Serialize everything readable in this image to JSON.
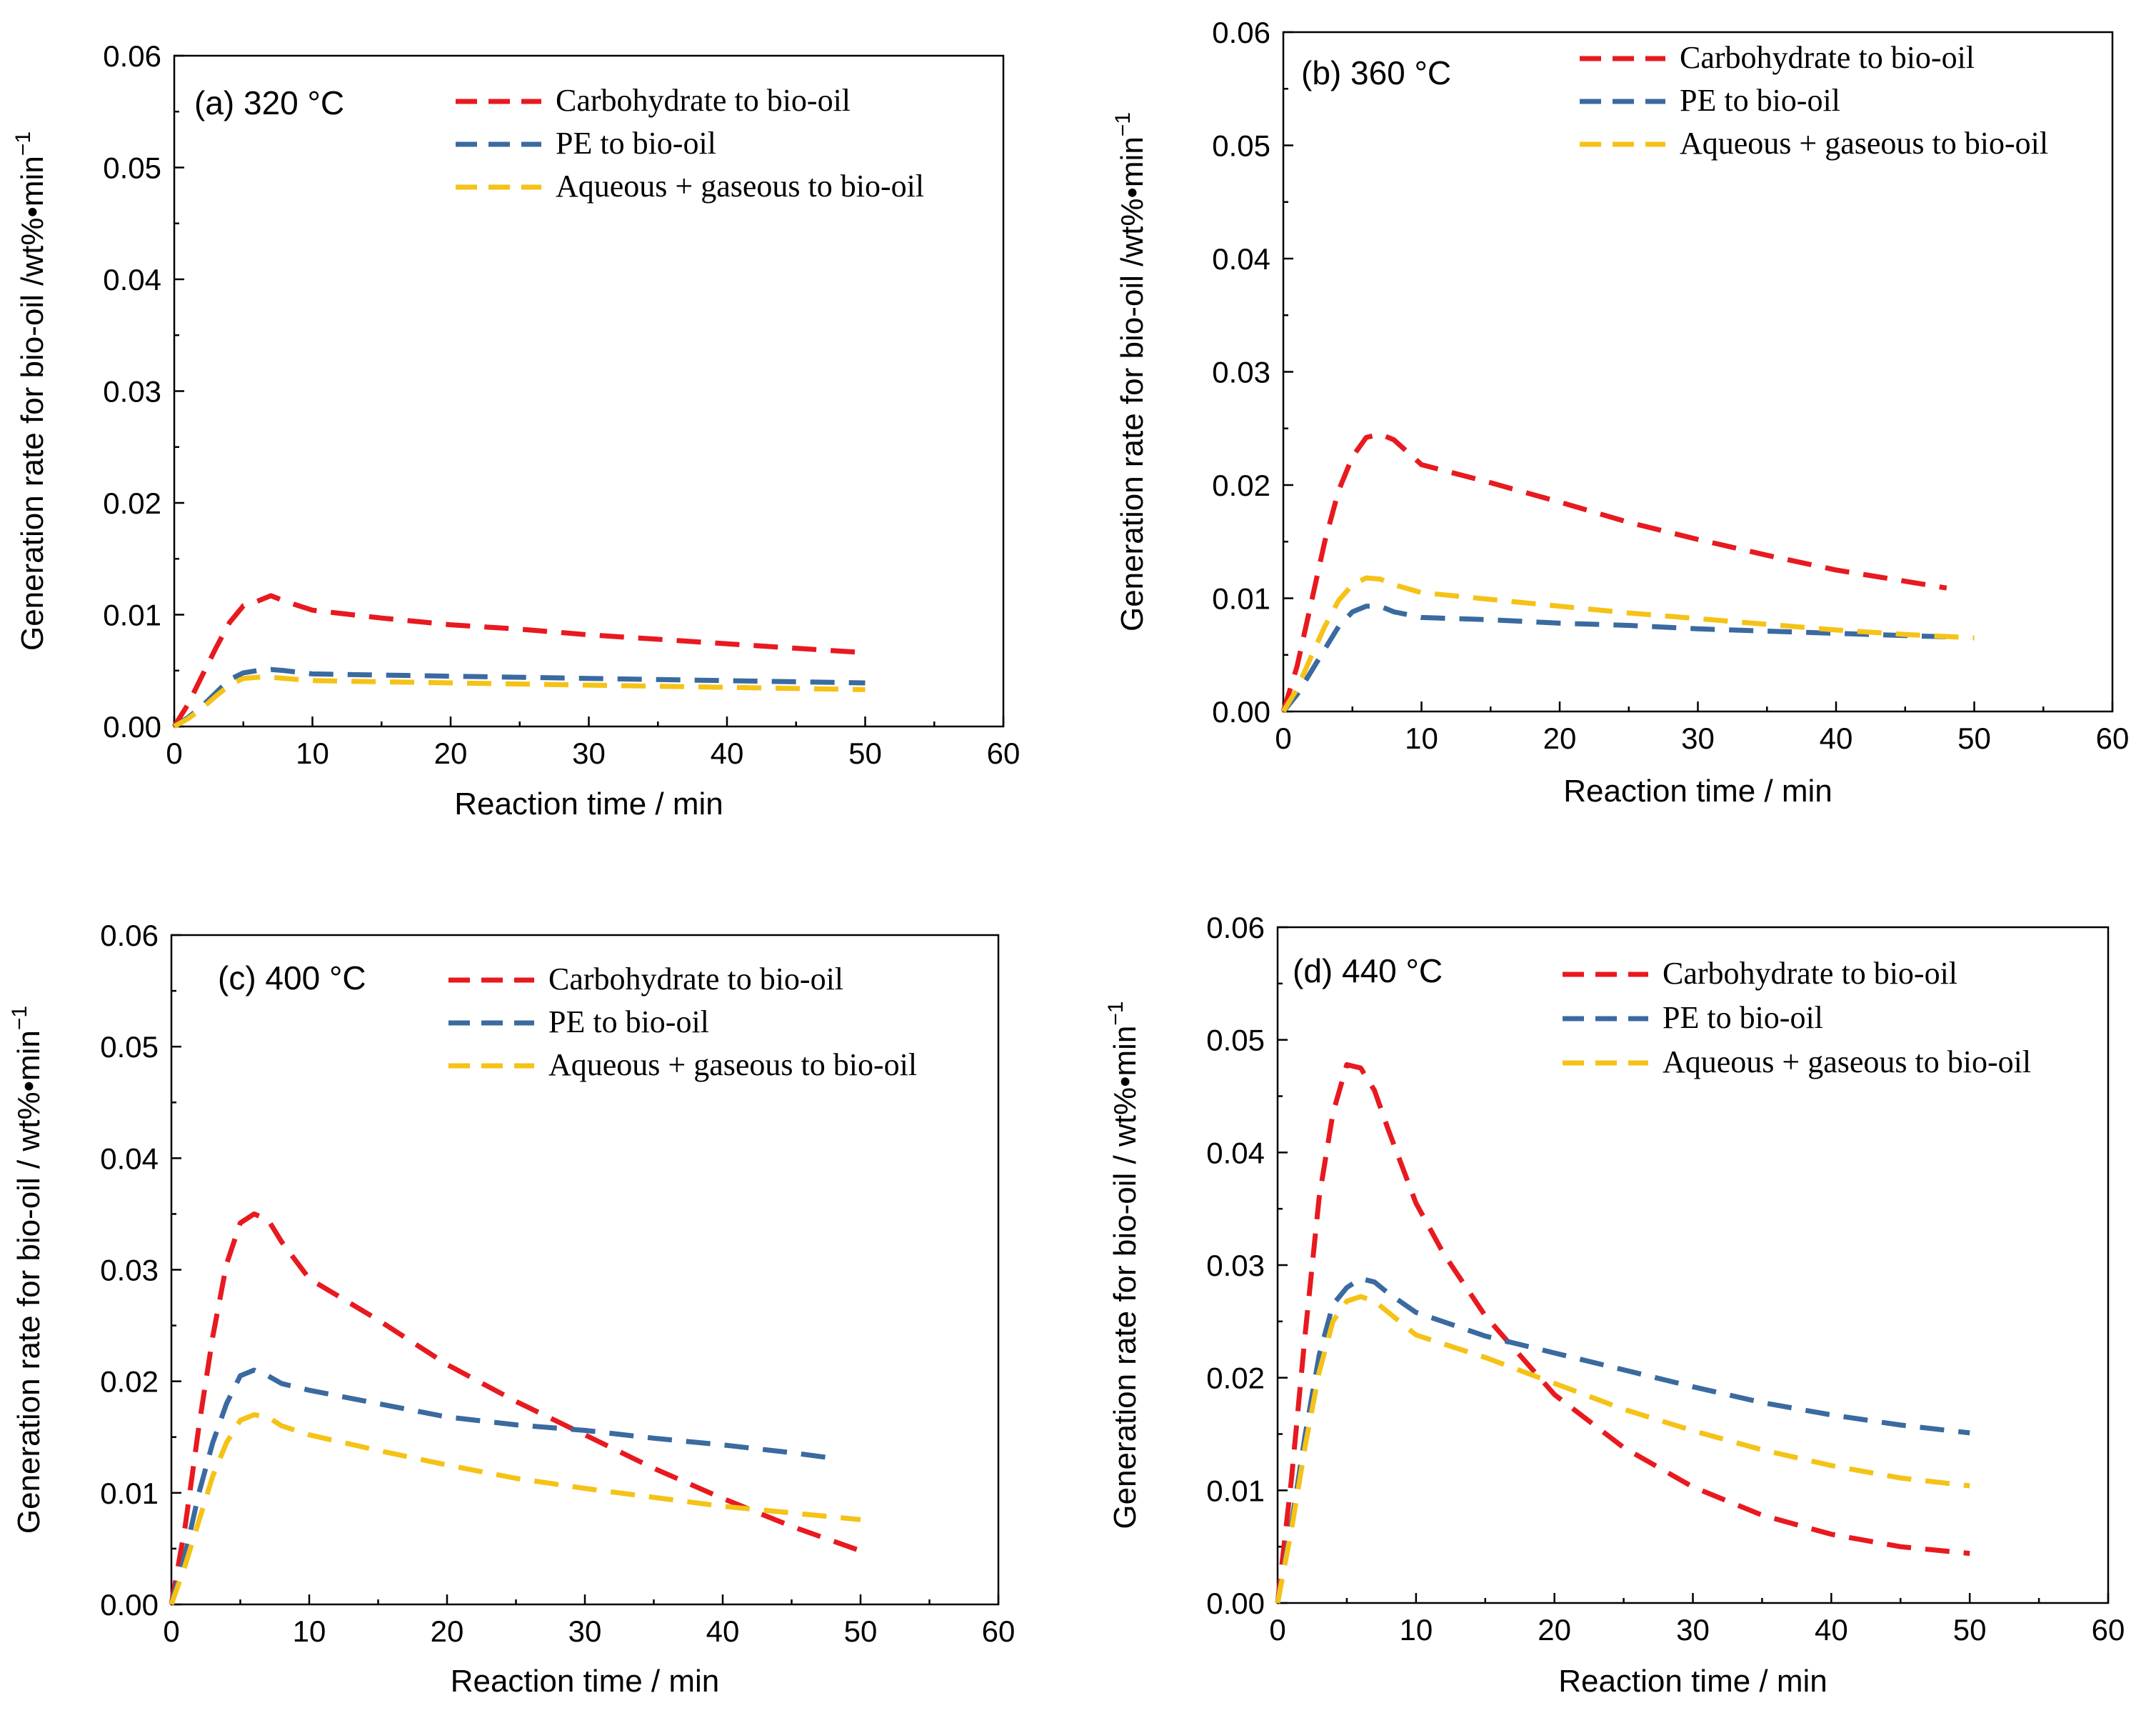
{
  "chart_data": [
    {
      "type": "line",
      "panel_label": "(a)  320 °C",
      "xlabel": "Reaction time / min",
      "ylabel": "Generation rate for bio-oil /wt%•min",
      "ylabel_exp": "−1",
      "xlim": [
        0,
        60
      ],
      "ylim": [
        0,
        0.06
      ],
      "xticks": [
        "0",
        "10",
        "20",
        "30",
        "40",
        "50",
        "60"
      ],
      "yticks": [
        "0.00",
        "0.01",
        "0.02",
        "0.03",
        "0.04",
        "0.05",
        "0.06"
      ],
      "series": [
        {
          "name": "Carbohydrate to bio-oil",
          "color": "#e8191f",
          "x": [
            0,
            1,
            2,
            3,
            4,
            5,
            6,
            7,
            8,
            10,
            15,
            20,
            25,
            30,
            35,
            40,
            45,
            50
          ],
          "y": [
            0,
            0.002,
            0.0045,
            0.007,
            0.0093,
            0.0108,
            0.0112,
            0.0117,
            0.0112,
            0.0104,
            0.0097,
            0.0091,
            0.0087,
            0.0082,
            0.0078,
            0.0074,
            0.007,
            0.0066
          ]
        },
        {
          "name": "PE to bio-oil",
          "color": "#3a6aa0",
          "x": [
            0,
            1,
            2,
            3,
            4,
            5,
            6,
            7,
            8,
            10,
            15,
            20,
            25,
            30,
            35,
            40,
            45,
            50
          ],
          "y": [
            0,
            0.0008,
            0.0018,
            0.003,
            0.0042,
            0.0048,
            0.005,
            0.0051,
            0.005,
            0.0047,
            0.0046,
            0.0045,
            0.0044,
            0.0043,
            0.0042,
            0.0041,
            0.004,
            0.0039
          ]
        },
        {
          "name": "Aqueous + gaseous to bio-oil",
          "color": "#f5c216",
          "x": [
            0,
            1,
            2,
            3,
            4,
            5,
            6,
            7,
            8,
            10,
            15,
            20,
            25,
            30,
            35,
            40,
            45,
            50
          ],
          "y": [
            0,
            0.0007,
            0.0016,
            0.0027,
            0.0037,
            0.0043,
            0.0044,
            0.0044,
            0.0043,
            0.0041,
            0.004,
            0.0039,
            0.0038,
            0.0037,
            0.0036,
            0.0035,
            0.0034,
            0.0033
          ]
        }
      ]
    },
    {
      "type": "line",
      "panel_label": "(b)  360 °C",
      "xlabel": "Reaction time / min",
      "ylabel": "Generation rate for bio-oil /wt%•min",
      "ylabel_exp": "−1",
      "xlim": [
        0,
        60
      ],
      "ylim": [
        0,
        0.06
      ],
      "xticks": [
        "0",
        "10",
        "20",
        "30",
        "40",
        "50",
        "60"
      ],
      "yticks": [
        "0.00",
        "0.01",
        "0.02",
        "0.03",
        "0.04",
        "0.05",
        "0.06"
      ],
      "series": [
        {
          "name": "Carbohydrate to bio-oil",
          "color": "#e8191f",
          "x": [
            0,
            1,
            2,
            3,
            4,
            5,
            6,
            7,
            8,
            10,
            15,
            20,
            25,
            30,
            35,
            40,
            45,
            48
          ],
          "y": [
            0,
            0.004,
            0.0095,
            0.015,
            0.0195,
            0.0225,
            0.0242,
            0.0245,
            0.024,
            0.0218,
            0.0202,
            0.0185,
            0.0167,
            0.0152,
            0.0138,
            0.0125,
            0.0115,
            0.0109
          ]
        },
        {
          "name": "PE to bio-oil",
          "color": "#3a6aa0",
          "x": [
            0,
            1,
            2,
            3,
            4,
            5,
            6,
            7,
            8,
            10,
            15,
            20,
            25,
            30,
            35,
            40,
            45,
            48
          ],
          "y": [
            0,
            0.0015,
            0.0035,
            0.0055,
            0.0075,
            0.0088,
            0.0093,
            0.0093,
            0.0088,
            0.0083,
            0.0081,
            0.0078,
            0.0076,
            0.0073,
            0.0071,
            0.0069,
            0.0067,
            0.0066
          ]
        },
        {
          "name": "Aqueous + gaseous to bio-oil",
          "color": "#f5c216",
          "x": [
            0,
            1,
            2,
            3,
            4,
            5,
            6,
            7,
            8,
            10,
            15,
            20,
            25,
            30,
            35,
            40,
            45,
            50
          ],
          "y": [
            0,
            0.002,
            0.0048,
            0.0075,
            0.0098,
            0.0112,
            0.0118,
            0.0117,
            0.0112,
            0.0105,
            0.0099,
            0.0093,
            0.0087,
            0.0082,
            0.0077,
            0.0072,
            0.0068,
            0.0065
          ]
        }
      ]
    },
    {
      "type": "line",
      "panel_label": "(c)  400 °C",
      "xlabel": "Reaction time / min",
      "ylabel": "Generation rate for bio-oil / wt%•min",
      "ylabel_exp": "−1",
      "xlim": [
        0,
        60
      ],
      "ylim": [
        0,
        0.06
      ],
      "xticks": [
        "0",
        "10",
        "20",
        "30",
        "40",
        "50",
        "60"
      ],
      "yticks": [
        "0.00",
        "0.01",
        "0.02",
        "0.03",
        "0.04",
        "0.05",
        "0.06"
      ],
      "series": [
        {
          "name": "Carbohydrate to bio-oil",
          "color": "#e8191f",
          "x": [
            0,
            1,
            2,
            3,
            4,
            5,
            6,
            7,
            8,
            10,
            15,
            20,
            25,
            30,
            35,
            40,
            45,
            50
          ],
          "y": [
            0,
            0.007,
            0.016,
            0.024,
            0.0305,
            0.0342,
            0.035,
            0.0345,
            0.0325,
            0.0292,
            0.0255,
            0.0215,
            0.0182,
            0.0152,
            0.0122,
            0.0095,
            0.007,
            0.0048
          ]
        },
        {
          "name": "PE to bio-oil",
          "color": "#3a6aa0",
          "x": [
            0,
            1,
            2,
            3,
            4,
            5,
            6,
            7,
            8,
            10,
            15,
            20,
            25,
            30,
            35,
            40,
            45,
            48
          ],
          "y": [
            0,
            0.0045,
            0.01,
            0.0145,
            0.018,
            0.0205,
            0.021,
            0.0205,
            0.0198,
            0.0192,
            0.018,
            0.0168,
            0.0161,
            0.0156,
            0.0149,
            0.0143,
            0.0136,
            0.0131
          ]
        },
        {
          "name": "Aqueous + gaseous to bio-oil",
          "color": "#f5c216",
          "x": [
            0,
            1,
            2,
            3,
            4,
            5,
            6,
            7,
            8,
            10,
            15,
            20,
            25,
            30,
            35,
            40,
            45,
            50
          ],
          "y": [
            0,
            0.0035,
            0.0075,
            0.0115,
            0.0145,
            0.0165,
            0.017,
            0.0168,
            0.016,
            0.0152,
            0.0138,
            0.0125,
            0.0113,
            0.0104,
            0.0096,
            0.0088,
            0.0082,
            0.0076
          ]
        }
      ]
    },
    {
      "type": "line",
      "panel_label": "(d)  440 °C",
      "xlabel": "Reaction time / min",
      "ylabel": "Generation rate for bio-oil / wt%•min",
      "ylabel_exp": "−1",
      "xlim": [
        0,
        60
      ],
      "ylim": [
        0,
        0.06
      ],
      "xticks": [
        "0",
        "10",
        "20",
        "30",
        "40",
        "50",
        "60"
      ],
      "yticks": [
        "0.00",
        "0.01",
        "0.02",
        "0.03",
        "0.04",
        "0.05",
        "0.06"
      ],
      "series": [
        {
          "name": "Carbohydrate to bio-oil",
          "color": "#e8191f",
          "x": [
            0,
            1,
            2,
            3,
            4,
            5,
            6,
            7,
            8,
            10,
            12,
            15,
            20,
            25,
            30,
            35,
            40,
            45,
            50
          ],
          "y": [
            0,
            0.011,
            0.024,
            0.036,
            0.0435,
            0.0478,
            0.0475,
            0.0455,
            0.042,
            0.0355,
            0.031,
            0.0255,
            0.0185,
            0.0138,
            0.0103,
            0.0078,
            0.0061,
            0.005,
            0.0044
          ]
        },
        {
          "name": "PE to bio-oil",
          "color": "#3a6aa0",
          "x": [
            0,
            1,
            2,
            3,
            4,
            5,
            6,
            7,
            8,
            10,
            15,
            20,
            25,
            30,
            35,
            40,
            45,
            50
          ],
          "y": [
            0,
            0.007,
            0.015,
            0.022,
            0.0265,
            0.028,
            0.0288,
            0.0285,
            0.0275,
            0.0258,
            0.0237,
            0.0222,
            0.0207,
            0.0192,
            0.0178,
            0.0167,
            0.0158,
            0.0151
          ]
        },
        {
          "name": "Aqueous + gaseous to bio-oil",
          "color": "#f5c216",
          "x": [
            0,
            1,
            2,
            3,
            4,
            5,
            6,
            7,
            8,
            10,
            15,
            20,
            25,
            30,
            35,
            40,
            45,
            50
          ],
          "y": [
            0,
            0.0065,
            0.014,
            0.0205,
            0.025,
            0.0268,
            0.0272,
            0.0268,
            0.0258,
            0.0238,
            0.0218,
            0.0195,
            0.0172,
            0.0153,
            0.0136,
            0.0122,
            0.0111,
            0.0104
          ]
        }
      ]
    }
  ]
}
